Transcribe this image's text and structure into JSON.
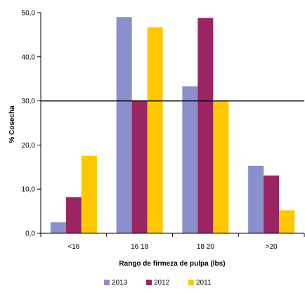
{
  "chart_data": {
    "type": "bar",
    "title": "",
    "xlabel": "Rango de firmeza de pulpa (lbs)",
    "ylabel": "% Cosecha",
    "categories": [
      "<16",
      "16 18",
      "18 20",
      ">20"
    ],
    "series": [
      {
        "name": "2013",
        "color": "#8B8FCB",
        "values": [
          2.5,
          49.0,
          33.3,
          15.3
        ]
      },
      {
        "name": "2012",
        "color": "#9B2563",
        "values": [
          8.2,
          30.0,
          48.8,
          13.1
        ]
      },
      {
        "name": "2011",
        "color": "#FFC800",
        "values": [
          17.6,
          46.7,
          30.0,
          5.2
        ]
      }
    ],
    "ylim": [
      0,
      50
    ],
    "yticks": [
      0,
      10,
      20,
      30,
      40,
      50
    ],
    "ytick_labels": [
      "0,0",
      "10,0",
      "20,0",
      "30,0",
      "40,0",
      "50,0"
    ],
    "reference_line": 30,
    "grid": false,
    "legend_position": "bottom"
  }
}
